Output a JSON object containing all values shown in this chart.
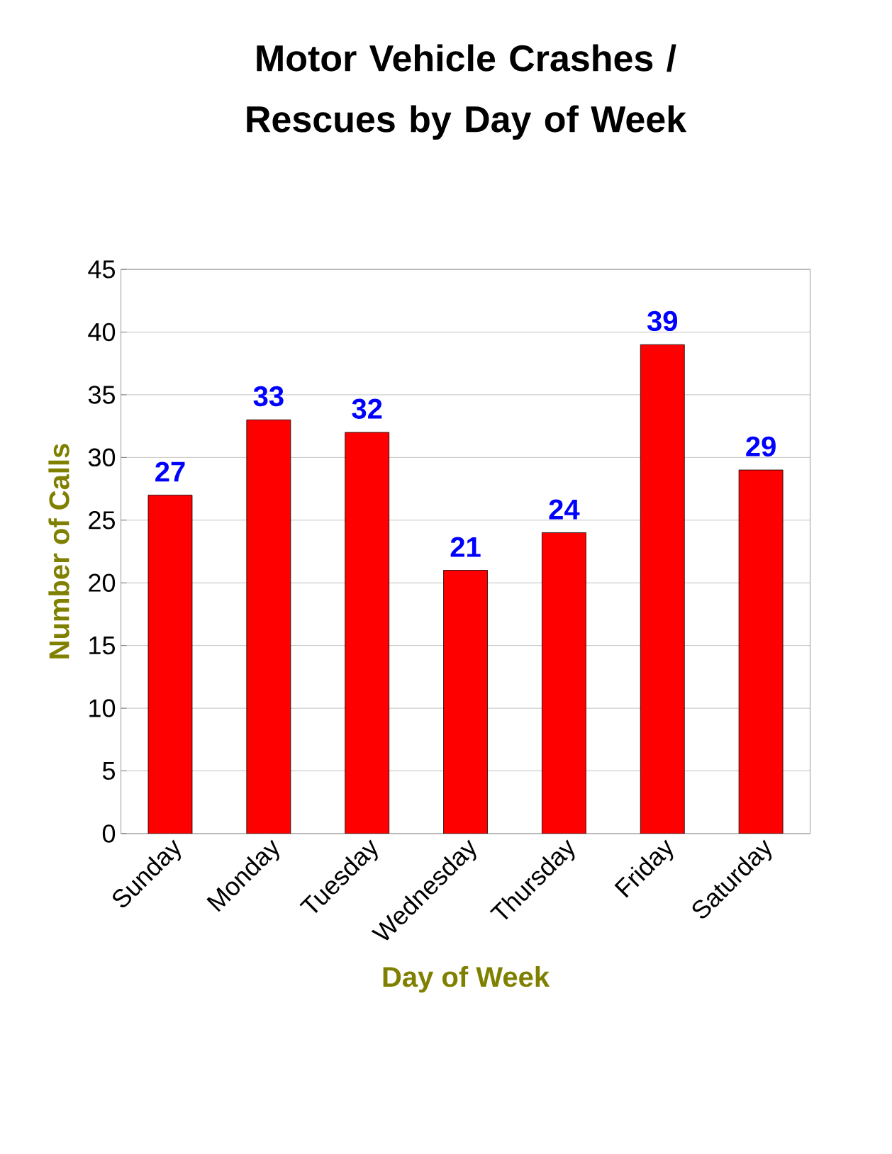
{
  "chart_data": {
    "type": "bar",
    "title": "Motor Vehicle Crashes / Rescues by Day of Week",
    "xlabel": "Day of Week",
    "ylabel": "Number of Calls",
    "categories": [
      "Sunday",
      "Monday",
      "Tuesday",
      "Wednesday",
      "Thursday",
      "Friday",
      "Saturday"
    ],
    "values": [
      27,
      33,
      32,
      21,
      24,
      39,
      29
    ],
    "color": "#ff0000",
    "ylim": [
      0,
      45
    ],
    "yticks": [
      0,
      5,
      10,
      15,
      20,
      25,
      30,
      35,
      40,
      45
    ],
    "grid": "y",
    "data_labels": true
  }
}
